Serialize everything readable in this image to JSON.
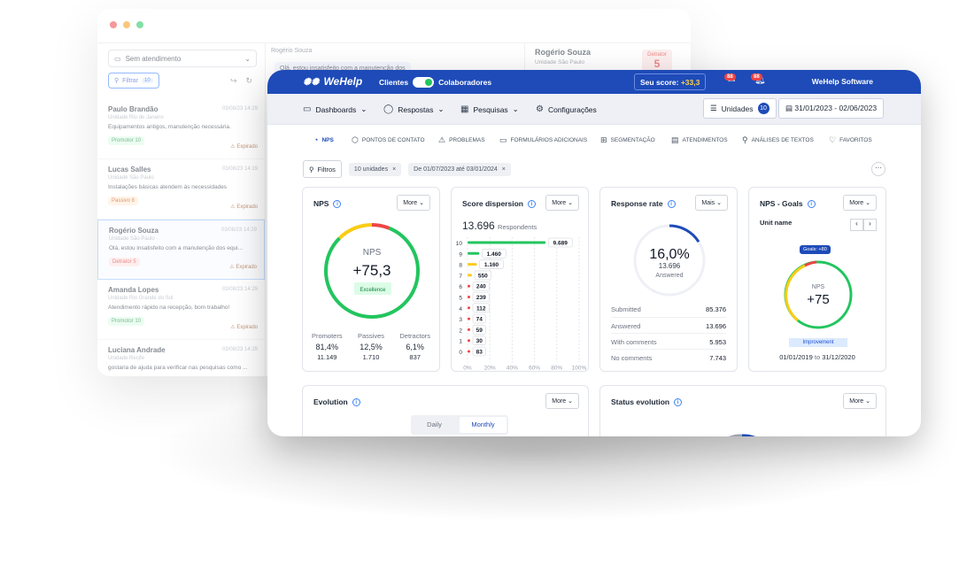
{
  "back": {
    "select_label": "Sem atendimento",
    "filter_label": "Filtrar",
    "filter_count": "10",
    "tickets": [
      {
        "name": "Paulo Brandão",
        "date": "03/08/23 14:29",
        "unit": "Unidade Rio de Janeiro",
        "msg": "Equipamentos antigos, manutenção necessária.",
        "badge": "Promotor 10",
        "badge_color": "#dcfce7",
        "badge_text": "#15803d",
        "exp": "Expirado"
      },
      {
        "name": "Lucas Salles",
        "date": "03/08/23 14:19",
        "unit": "Unidade São Paulo",
        "msg": "Instalações básicas atendem às necessidades",
        "badge": "Passivo 8",
        "badge_color": "#ffedd5",
        "badge_text": "#c2410c",
        "exp": "Expirado"
      },
      {
        "name": "Rogério Souza",
        "date": "03/08/23 14:29",
        "unit": "Unidade São Paulo",
        "msg": "Olá, estou insatisfeito com a manutenção dos equi...",
        "badge": "Detrator 5",
        "badge_color": "#fee2e2",
        "badge_text": "#dc2626",
        "exp": "Expirado"
      },
      {
        "name": "Amanda Lopes",
        "date": "03/08/23 14:29",
        "unit": "Unidade Rio Grande do Sul",
        "msg": "Atendimento rápido na recepção, bom trabalho!",
        "badge": "Promotor 10",
        "badge_color": "#dcfce7",
        "badge_text": "#15803d",
        "exp": "Expirado"
      },
      {
        "name": "Luciana Andrade",
        "date": "03/08/23 14:29",
        "unit": "Unidade Recife",
        "msg": "gostaria de ajuda para verificar nas pesquisas como ...",
        "badge": "",
        "badge_color": "",
        "badge_text": "",
        "exp": ""
      }
    ],
    "mid_name": "Rogério Souza",
    "mid_msg": "Olá, estou insatisfeito com a manutenção dos",
    "right_name": "Rogério Souza",
    "right_sub": "Unidade  São Paulo",
    "det_label": "Detrator",
    "det_value": "5"
  },
  "topbar": {
    "brand": "WeHelp",
    "clients": "Clientes",
    "collaborators": "Colaboradores",
    "score_label": "Seu score:",
    "score_value": "+33,3",
    "badge1": "88",
    "badge2": "88",
    "org": "WeHelp Software"
  },
  "menu": {
    "dashboards": "Dashboards",
    "respostas": "Respostas",
    "pesquisas": "Pesquisas",
    "config": "Configurações",
    "unidades": "Unidades",
    "unidades_count": "10",
    "date_range": "31/01/2023 - 02/06/2023"
  },
  "subnav": [
    "NPS",
    "PONTOS DE CONTATO",
    "PROBLEMAS",
    "FORMULÁRIOS ADICIONAIS",
    "SEGMENTAÇÃO",
    "ATENDIMENTOS",
    "ANÁLISES DE TEXTOS",
    "FAVORITOS"
  ],
  "filters": {
    "label": "Filtros",
    "chip1": "10 unidades",
    "chip2": "De 01/07/2023 até 03/01/2024",
    "kebab": "···"
  },
  "nps": {
    "title": "NPS",
    "more": "More",
    "center_label": "NPS",
    "center_value": "+75,3",
    "tag": "Excellence",
    "cols": [
      {
        "label": "Promoters",
        "pct": "81,4%",
        "n": "11.149"
      },
      {
        "label": "Passives",
        "pct": "12,5%",
        "n": "1.710"
      },
      {
        "label": "Detractors",
        "pct": "6,1%",
        "n": "837"
      }
    ],
    "promoters_frac": 0.814,
    "passives_frac": 0.125,
    "detractors_frac": 0.061
  },
  "chart_data": {
    "type": "bar",
    "title": "Score dispersion",
    "categories": [
      "10",
      "9",
      "8",
      "7",
      "6",
      "5",
      "4",
      "3",
      "2",
      "1",
      "0"
    ],
    "values": [
      9689,
      1460,
      1160,
      550,
      240,
      239,
      112,
      74,
      59,
      30,
      83
    ],
    "value_labels": [
      "9.689",
      "1.460",
      "1.160",
      "550",
      "240",
      "239",
      "112",
      "74",
      "59",
      "30",
      "83"
    ],
    "colors": [
      "#22c55e",
      "#22c55e",
      "#facc15",
      "#facc15",
      "#ef4444",
      "#ef4444",
      "#ef4444",
      "#ef4444",
      "#ef4444",
      "#ef4444",
      "#ef4444"
    ],
    "total": "13.696",
    "total_label": "Respondents",
    "xticks": [
      "0%",
      "20%",
      "40%",
      "60%",
      "80%",
      "100%"
    ],
    "xlim": [
      0,
      100
    ]
  },
  "score_more": "More",
  "response": {
    "title": "Response rate",
    "more": "Mais",
    "pct": "16,0%",
    "count": "13.696",
    "answered": "Answered",
    "frac": 0.16,
    "rows": [
      {
        "label": "Submitted",
        "value": "85.376"
      },
      {
        "label": "Answered",
        "value": "13.696"
      },
      {
        "label": "With comments",
        "value": "5.953"
      },
      {
        "label": "No comments",
        "value": "7.743"
      }
    ]
  },
  "goals": {
    "title": "NPS - Goals",
    "more": "More",
    "unit_name": "Unit name",
    "goal_tag": "Goals: +80",
    "label": "NPS",
    "value": "+75",
    "status": "Improvement",
    "range_from": "01/01/2019",
    "range_to_word": "to",
    "range_to": "31/12/2020"
  },
  "evolution": {
    "title": "Evolution",
    "more": "More",
    "tab_daily": "Daily",
    "tab_monthly": "Monthly"
  },
  "status": {
    "title": "Status evolution",
    "more": "More"
  },
  "colors": {
    "brand": "#1e4bb8",
    "promoter": "#22c55e",
    "passive": "#facc15",
    "detractor": "#ef4444"
  }
}
